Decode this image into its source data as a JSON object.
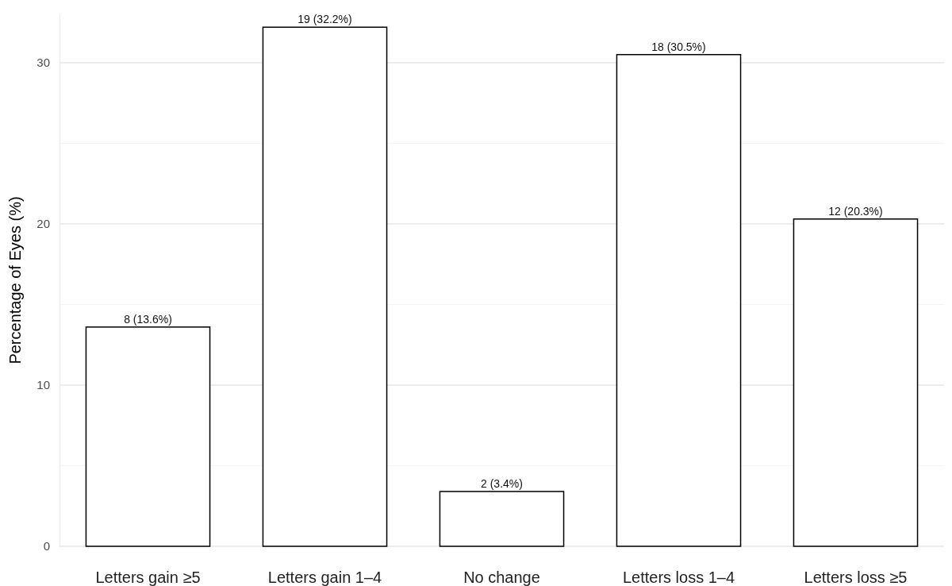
{
  "chart_data": {
    "type": "bar",
    "ylabel": "Percentage of Eyes (%)",
    "categories": [
      "Letters gain ≥5",
      "Letters gain 1–4",
      "No change",
      "Letters loss 1–4",
      "Letters loss ≥5"
    ],
    "values": [
      13.6,
      32.2,
      3.4,
      30.5,
      20.3
    ],
    "value_labels": [
      "8 (13.6%)",
      "19 (32.2%)",
      "2 (3.4%)",
      "18 (30.5%)",
      "12 (20.3%)"
    ],
    "color": "#ffffff",
    "ylim": [
      0,
      33
    ],
    "yticks": [
      0,
      {
        "value": 5,
        "label": null
      },
      10,
      {
        "value": 15,
        "label": null
      },
      20,
      {
        "value": 25,
        "label": null
      },
      30
    ],
    "grid": "y"
  }
}
